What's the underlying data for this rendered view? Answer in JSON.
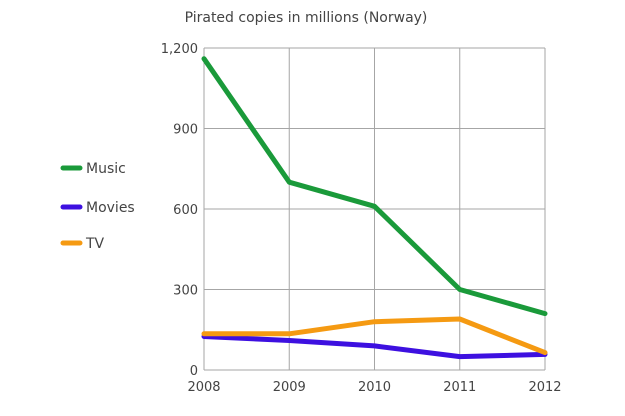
{
  "chart_data": {
    "type": "line",
    "title": "Pirated copies in millions (Norway)",
    "xlabel": "",
    "ylabel": "",
    "categories": [
      "2008",
      "2009",
      "2010",
      "2011",
      "2012"
    ],
    "ylim": [
      0,
      1200
    ],
    "yticks": [
      0,
      300,
      600,
      900,
      1200
    ],
    "ytick_labels": [
      "0",
      "300",
      "600",
      "900",
      "1,200"
    ],
    "grid": true,
    "legend_position": "left",
    "series": [
      {
        "name": "Music",
        "color": "#1a9a3a",
        "values": [
          1160,
          700,
          610,
          300,
          210
        ]
      },
      {
        "name": "Movies",
        "color": "#3d10e0",
        "values": [
          125,
          110,
          90,
          50,
          58
        ]
      },
      {
        "name": "TV",
        "color": "#f59a12",
        "values": [
          135,
          135,
          180,
          190,
          65
        ]
      }
    ]
  }
}
